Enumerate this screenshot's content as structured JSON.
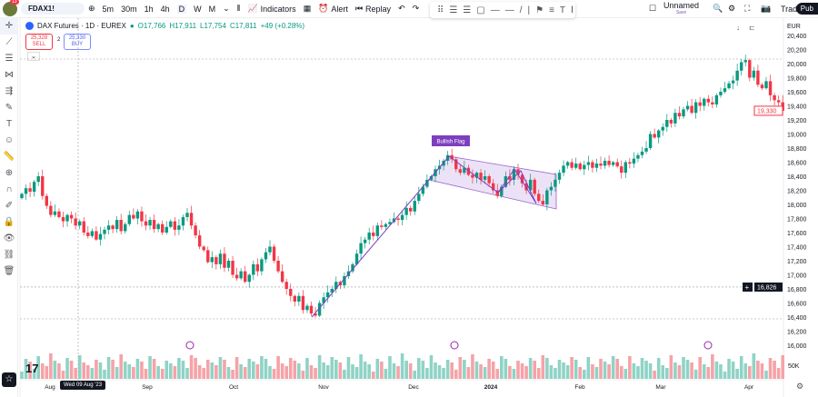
{
  "toolbar": {
    "badge_count": "13",
    "symbol": "FDAX1!",
    "intervals": [
      "5m",
      "30m",
      "1h",
      "4h",
      "D",
      "W",
      "M"
    ],
    "active_interval": "D",
    "indicators": "Indicators",
    "alert": "Alert",
    "replay": "Replay",
    "layout_name": "Unnamed",
    "layout_save": "Save",
    "trade": "Trade",
    "publish": "Pub"
  },
  "legend": {
    "title": "DAX Futures · 1D · EUREX",
    "open": "O17,766",
    "high": "H17,911",
    "low": "L17,754",
    "close": "C17,811",
    "change": "+49 (+0.28%)",
    "sell_price": "25,328",
    "sell_label": "SELL",
    "spread": "2",
    "buy_price": "25,330",
    "buy_label": "BUY"
  },
  "currency": "EUR",
  "colors": {
    "up": "#089981",
    "down": "#f23645",
    "vol_up": "#8fd3c6",
    "vol_down": "#f5a3a8",
    "drawing": "#7e3fbf",
    "flag_fill": "#e8dcf6"
  },
  "annotation": {
    "label": "Bullish Flag"
  },
  "crosshair": {
    "date": "Wed 09 Aug '23"
  },
  "price_labels": {
    "last": "19,330",
    "cursor": "16,826"
  },
  "volume_label": "50K",
  "chart_data": {
    "type": "candlestick",
    "price_ticks": [
      "20,400",
      "20,200",
      "20,000",
      "19,800",
      "19,600",
      "19,400",
      "19,200",
      "19,000",
      "18,800",
      "18,600",
      "18,400",
      "18,200",
      "18,000",
      "17,800",
      "17,600",
      "17,400",
      "17,200",
      "17,000",
      "16,800",
      "16,600",
      "16,400",
      "16,200",
      "16,000"
    ],
    "x_ticks": [
      "Aug",
      "Sep",
      "Oct",
      "Nov",
      "Dec",
      "2024",
      "Feb",
      "Mar",
      "Apr"
    ],
    "ylim": [
      16000,
      20400
    ],
    "closes": [
      18150,
      18230,
      18180,
      18320,
      18400,
      18120,
      17980,
      17850,
      17900,
      17820,
      17760,
      17850,
      17800,
      17700,
      17760,
      17600,
      17550,
      17620,
      17500,
      17580,
      17640,
      17700,
      17650,
      17780,
      17620,
      17720,
      17850,
      17800,
      17900,
      17760,
      17700,
      17780,
      17650,
      17720,
      17600,
      17680,
      17760,
      17640,
      17700,
      17820,
      17880,
      17700,
      17560,
      17400,
      17350,
      17180,
      17250,
      17150,
      17300,
      17100,
      17200,
      17000,
      16950,
      17050,
      16900,
      17000,
      17150,
      17050,
      17220,
      17320,
      17400,
      17200,
      17050,
      16900,
      16800,
      16700,
      16620,
      16700,
      16500,
      16560,
      16450,
      16420,
      16600,
      16680,
      16750,
      16800,
      16900,
      16850,
      16980,
      17050,
      17150,
      17300,
      17450,
      17500,
      17600,
      17550,
      17700,
      17680,
      17720,
      17750,
      17800,
      17780,
      17850,
      17950,
      17900,
      18050,
      18150,
      18250,
      18350,
      18400,
      18500,
      18550,
      18620,
      18700,
      18640,
      18500,
      18450,
      18520,
      18420,
      18380,
      18450,
      18350,
      18400,
      18300,
      18200,
      18120,
      18250,
      18400,
      18350,
      18500,
      18420,
      18300,
      18200,
      18350,
      18150,
      18050,
      18000,
      18200,
      18250,
      18350,
      18450,
      18550,
      18600,
      18520,
      18580,
      18500,
      18560,
      18600,
      18520,
      18580,
      18550,
      18620,
      18560,
      18600,
      18540,
      18450,
      18600,
      18580,
      18650,
      18700,
      18750,
      18800,
      19000,
      18950,
      19050,
      19100,
      19200,
      19150,
      19300,
      19250,
      19350,
      19400,
      19300,
      19450,
      19400,
      19500,
      19450,
      19420,
      19550,
      19600,
      19650,
      19720,
      19760,
      19900,
      20020,
      20050,
      19800,
      19900,
      19700,
      19650,
      19750,
      19550,
      19480,
      19450,
      19330
    ]
  }
}
